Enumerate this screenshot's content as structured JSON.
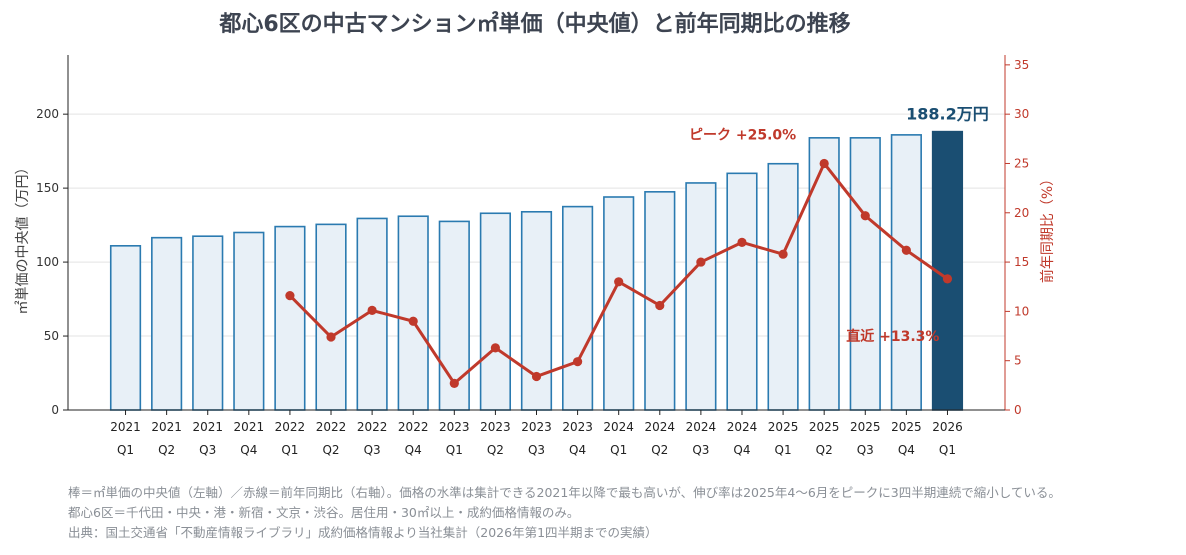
{
  "title": "都心6区の中古マンション㎡単価（中央値）と前年同期比の推移",
  "chart_data": {
    "type": "bar",
    "categories": [
      [
        "2021",
        "Q1"
      ],
      [
        "2021",
        "Q2"
      ],
      [
        "2021",
        "Q3"
      ],
      [
        "2021",
        "Q4"
      ],
      [
        "2022",
        "Q1"
      ],
      [
        "2022",
        "Q2"
      ],
      [
        "2022",
        "Q3"
      ],
      [
        "2022",
        "Q4"
      ],
      [
        "2023",
        "Q1"
      ],
      [
        "2023",
        "Q2"
      ],
      [
        "2023",
        "Q3"
      ],
      [
        "2023",
        "Q4"
      ],
      [
        "2024",
        "Q1"
      ],
      [
        "2024",
        "Q2"
      ],
      [
        "2024",
        "Q3"
      ],
      [
        "2024",
        "Q4"
      ],
      [
        "2025",
        "Q1"
      ],
      [
        "2025",
        "Q2"
      ],
      [
        "2025",
        "Q3"
      ],
      [
        "2025",
        "Q4"
      ],
      [
        "2026",
        "Q1"
      ]
    ],
    "series": [
      {
        "type": "bar",
        "axis": "left",
        "values": [
          111,
          116.5,
          117.5,
          120,
          124,
          125.5,
          129.5,
          131,
          127.5,
          133,
          134,
          137.5,
          144,
          147.5,
          153.5,
          160,
          166.5,
          184,
          184,
          186,
          188.2
        ]
      },
      {
        "type": "line",
        "axis": "right",
        "values": [
          null,
          null,
          null,
          null,
          11.6,
          7.4,
          10.1,
          9.0,
          2.7,
          6.3,
          3.4,
          4.9,
          13.0,
          10.6,
          15.0,
          17.0,
          15.8,
          25.0,
          19.7,
          16.2,
          13.3
        ]
      }
    ],
    "ylabel_left": "㎡単価の中央値（万円）",
    "ylabel_right": "前年同期比（%）",
    "ylim_left": [
      0,
      240
    ],
    "yticks_left": [
      0,
      50,
      100,
      150,
      200
    ],
    "ylim_right": [
      0,
      36
    ],
    "yticks_right": [
      0,
      5,
      10,
      15,
      20,
      25,
      30,
      35
    ],
    "grid": true,
    "colors": {
      "bar_fill": "#e8f0f7",
      "bar_stroke": "#2a7ab0",
      "bar_highlight": "#1a4e72",
      "line": "#c0392b",
      "right_axis": "#c0392b",
      "grid": "#e3e3e3"
    },
    "annotations": {
      "last_bar_label": "188.2万円",
      "peak_label": "ピーク +25.0%",
      "latest_label": "直近 +13.3%"
    }
  },
  "footnotes": [
    "棒＝㎡単価の中央値（左軸）／赤線＝前年同期比（右軸）。価格の水準は集計できる2021年以降で最も高いが、伸び率は2025年4〜6月をピークに3四半期連続で縮小している。",
    "都心6区＝千代田・中央・港・新宿・文京・渋谷。居住用・30㎡以上・成約価格情報のみ。",
    "出典：国土交通省「不動産情報ライブラリ」成約価格情報より当社集計（2026年第1四半期までの実績）"
  ]
}
